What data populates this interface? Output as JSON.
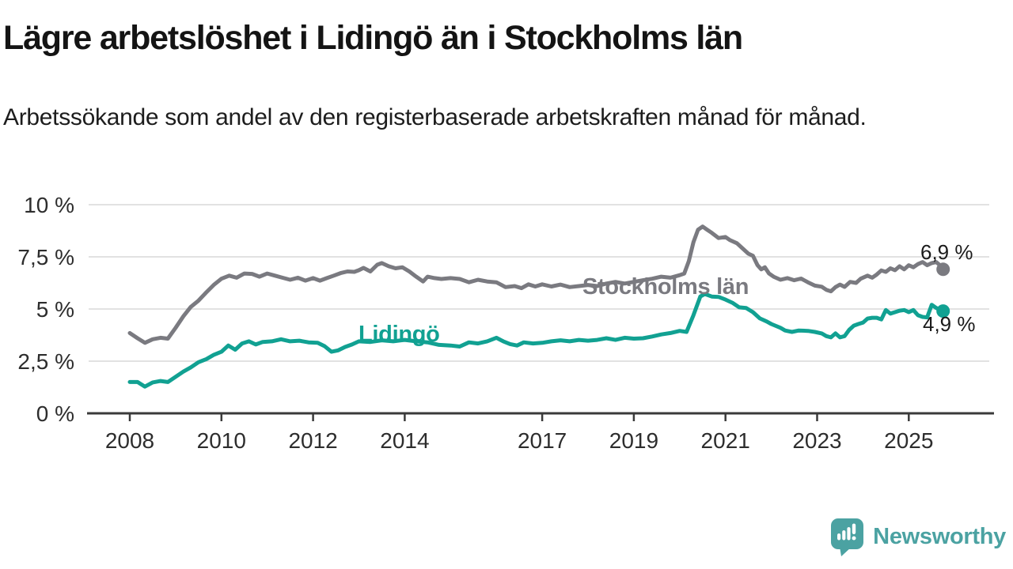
{
  "chart_data": {
    "type": "line",
    "title": "Lägre arbetslöshet i Lidingö än i Stockholms län",
    "subtitle": "Arbetssökande som andel av den registerbaserade arbetskraften månad för månad.",
    "x_axis": {
      "range": [
        2008,
        2025.75
      ],
      "ticks": [
        {
          "label": "2008",
          "value": 2008
        },
        {
          "label": "2010",
          "value": 2010
        },
        {
          "label": "2012",
          "value": 2012
        },
        {
          "label": "2014",
          "value": 2014
        },
        {
          "label": "2017",
          "value": 2017
        },
        {
          "label": "2019",
          "value": 2019
        },
        {
          "label": "2021",
          "value": 2021
        },
        {
          "label": "2023",
          "value": 2023
        },
        {
          "label": "2025",
          "value": 2025
        }
      ]
    },
    "y_axis": {
      "range": [
        0,
        10
      ],
      "grid": true,
      "ticks": [
        {
          "label": "0 %",
          "value": 0
        },
        {
          "label": "2,5 %",
          "value": 2.5
        },
        {
          "label": "5 %",
          "value": 5
        },
        {
          "label": "7,5 %",
          "value": 7.5
        },
        {
          "label": "10 %",
          "value": 10
        }
      ]
    },
    "legend_position": "inline-labels",
    "series": [
      {
        "name": "Stockholms län",
        "color": "#7A7A80",
        "end_label": "6,9 %",
        "end_value": 6.9,
        "points": [
          [
            2008.0,
            3.85
          ],
          [
            2008.17,
            3.6
          ],
          [
            2008.33,
            3.38
          ],
          [
            2008.5,
            3.55
          ],
          [
            2008.67,
            3.62
          ],
          [
            2008.83,
            3.58
          ],
          [
            2009.0,
            4.1
          ],
          [
            2009.17,
            4.65
          ],
          [
            2009.33,
            5.1
          ],
          [
            2009.5,
            5.4
          ],
          [
            2009.67,
            5.8
          ],
          [
            2009.83,
            6.15
          ],
          [
            2010.0,
            6.45
          ],
          [
            2010.17,
            6.6
          ],
          [
            2010.33,
            6.5
          ],
          [
            2010.5,
            6.7
          ],
          [
            2010.67,
            6.68
          ],
          [
            2010.83,
            6.55
          ],
          [
            2011.0,
            6.7
          ],
          [
            2011.17,
            6.6
          ],
          [
            2011.33,
            6.5
          ],
          [
            2011.5,
            6.4
          ],
          [
            2011.67,
            6.5
          ],
          [
            2011.83,
            6.36
          ],
          [
            2012.0,
            6.48
          ],
          [
            2012.15,
            6.36
          ],
          [
            2012.3,
            6.48
          ],
          [
            2012.45,
            6.6
          ],
          [
            2012.6,
            6.72
          ],
          [
            2012.75,
            6.8
          ],
          [
            2012.9,
            6.78
          ],
          [
            2013.0,
            6.86
          ],
          [
            2013.1,
            6.97
          ],
          [
            2013.25,
            6.8
          ],
          [
            2013.4,
            7.12
          ],
          [
            2013.5,
            7.2
          ],
          [
            2013.65,
            7.05
          ],
          [
            2013.8,
            6.95
          ],
          [
            2013.95,
            7.0
          ],
          [
            2014.1,
            6.8
          ],
          [
            2014.25,
            6.55
          ],
          [
            2014.4,
            6.32
          ],
          [
            2014.5,
            6.55
          ],
          [
            2014.65,
            6.48
          ],
          [
            2014.8,
            6.44
          ],
          [
            2015.0,
            6.48
          ],
          [
            2015.2,
            6.44
          ],
          [
            2015.4,
            6.28
          ],
          [
            2015.6,
            6.4
          ],
          [
            2015.8,
            6.32
          ],
          [
            2016.0,
            6.28
          ],
          [
            2016.2,
            6.05
          ],
          [
            2016.4,
            6.1
          ],
          [
            2016.55,
            6.0
          ],
          [
            2016.7,
            6.18
          ],
          [
            2016.85,
            6.08
          ],
          [
            2017.0,
            6.18
          ],
          [
            2017.2,
            6.08
          ],
          [
            2017.4,
            6.17
          ],
          [
            2017.6,
            6.05
          ],
          [
            2017.8,
            6.1
          ],
          [
            2018.0,
            6.15
          ],
          [
            2018.2,
            6.1
          ],
          [
            2018.4,
            6.22
          ],
          [
            2018.6,
            6.3
          ],
          [
            2018.8,
            6.22
          ],
          [
            2019.0,
            6.3
          ],
          [
            2019.2,
            6.38
          ],
          [
            2019.4,
            6.45
          ],
          [
            2019.6,
            6.55
          ],
          [
            2019.8,
            6.5
          ],
          [
            2020.0,
            6.62
          ],
          [
            2020.1,
            6.7
          ],
          [
            2020.2,
            7.3
          ],
          [
            2020.3,
            8.2
          ],
          [
            2020.4,
            8.8
          ],
          [
            2020.5,
            8.95
          ],
          [
            2020.6,
            8.8
          ],
          [
            2020.7,
            8.65
          ],
          [
            2020.85,
            8.4
          ],
          [
            2021.0,
            8.45
          ],
          [
            2021.1,
            8.3
          ],
          [
            2021.25,
            8.15
          ],
          [
            2021.35,
            7.95
          ],
          [
            2021.5,
            7.65
          ],
          [
            2021.6,
            7.55
          ],
          [
            2021.7,
            7.1
          ],
          [
            2021.78,
            6.9
          ],
          [
            2021.86,
            7.0
          ],
          [
            2021.95,
            6.7
          ],
          [
            2022.05,
            6.55
          ],
          [
            2022.2,
            6.4
          ],
          [
            2022.35,
            6.48
          ],
          [
            2022.5,
            6.38
          ],
          [
            2022.65,
            6.46
          ],
          [
            2022.8,
            6.28
          ],
          [
            2022.95,
            6.12
          ],
          [
            2023.1,
            6.07
          ],
          [
            2023.2,
            5.92
          ],
          [
            2023.3,
            5.85
          ],
          [
            2023.4,
            6.05
          ],
          [
            2023.5,
            6.17
          ],
          [
            2023.6,
            6.06
          ],
          [
            2023.72,
            6.3
          ],
          [
            2023.85,
            6.25
          ],
          [
            2023.95,
            6.45
          ],
          [
            2024.1,
            6.6
          ],
          [
            2024.2,
            6.5
          ],
          [
            2024.3,
            6.65
          ],
          [
            2024.4,
            6.85
          ],
          [
            2024.5,
            6.78
          ],
          [
            2024.6,
            6.95
          ],
          [
            2024.7,
            6.86
          ],
          [
            2024.8,
            7.05
          ],
          [
            2024.9,
            6.9
          ],
          [
            2025.0,
            7.1
          ],
          [
            2025.1,
            7.0
          ],
          [
            2025.2,
            7.15
          ],
          [
            2025.3,
            7.25
          ],
          [
            2025.4,
            7.1
          ],
          [
            2025.5,
            7.2
          ],
          [
            2025.6,
            7.25
          ],
          [
            2025.68,
            7.1
          ],
          [
            2025.75,
            6.9
          ]
        ]
      },
      {
        "name": "Lidingö",
        "color": "#11A192",
        "end_label": "4,9 %",
        "end_value": 4.9,
        "points": [
          [
            2008.0,
            1.5
          ],
          [
            2008.17,
            1.5
          ],
          [
            2008.33,
            1.28
          ],
          [
            2008.5,
            1.48
          ],
          [
            2008.67,
            1.55
          ],
          [
            2008.83,
            1.5
          ],
          [
            2009.0,
            1.75
          ],
          [
            2009.17,
            2.0
          ],
          [
            2009.33,
            2.2
          ],
          [
            2009.5,
            2.45
          ],
          [
            2009.67,
            2.6
          ],
          [
            2009.83,
            2.8
          ],
          [
            2010.0,
            2.95
          ],
          [
            2010.15,
            3.25
          ],
          [
            2010.3,
            3.05
          ],
          [
            2010.45,
            3.35
          ],
          [
            2010.6,
            3.45
          ],
          [
            2010.75,
            3.3
          ],
          [
            2010.9,
            3.42
          ],
          [
            2011.1,
            3.45
          ],
          [
            2011.3,
            3.55
          ],
          [
            2011.5,
            3.45
          ],
          [
            2011.7,
            3.48
          ],
          [
            2011.9,
            3.4
          ],
          [
            2012.1,
            3.38
          ],
          [
            2012.25,
            3.22
          ],
          [
            2012.4,
            2.95
          ],
          [
            2012.55,
            3.02
          ],
          [
            2012.7,
            3.18
          ],
          [
            2012.85,
            3.3
          ],
          [
            2013.0,
            3.45
          ],
          [
            2013.25,
            3.42
          ],
          [
            2013.5,
            3.5
          ],
          [
            2013.75,
            3.45
          ],
          [
            2014.0,
            3.52
          ],
          [
            2014.25,
            3.45
          ],
          [
            2014.5,
            3.4
          ],
          [
            2014.75,
            3.28
          ],
          [
            2015.0,
            3.25
          ],
          [
            2015.2,
            3.2
          ],
          [
            2015.4,
            3.4
          ],
          [
            2015.6,
            3.35
          ],
          [
            2015.8,
            3.45
          ],
          [
            2016.0,
            3.62
          ],
          [
            2016.15,
            3.45
          ],
          [
            2016.3,
            3.32
          ],
          [
            2016.45,
            3.25
          ],
          [
            2016.6,
            3.4
          ],
          [
            2016.8,
            3.35
          ],
          [
            2017.0,
            3.38
          ],
          [
            2017.2,
            3.45
          ],
          [
            2017.4,
            3.5
          ],
          [
            2017.6,
            3.45
          ],
          [
            2017.8,
            3.52
          ],
          [
            2018.0,
            3.48
          ],
          [
            2018.2,
            3.52
          ],
          [
            2018.4,
            3.6
          ],
          [
            2018.6,
            3.52
          ],
          [
            2018.8,
            3.62
          ],
          [
            2019.0,
            3.58
          ],
          [
            2019.2,
            3.6
          ],
          [
            2019.4,
            3.68
          ],
          [
            2019.6,
            3.78
          ],
          [
            2019.8,
            3.85
          ],
          [
            2020.0,
            3.95
          ],
          [
            2020.15,
            3.9
          ],
          [
            2020.3,
            4.7
          ],
          [
            2020.45,
            5.6
          ],
          [
            2020.55,
            5.72
          ],
          [
            2020.7,
            5.6
          ],
          [
            2020.85,
            5.58
          ],
          [
            2021.0,
            5.45
          ],
          [
            2021.15,
            5.3
          ],
          [
            2021.3,
            5.08
          ],
          [
            2021.45,
            5.05
          ],
          [
            2021.6,
            4.85
          ],
          [
            2021.75,
            4.55
          ],
          [
            2021.9,
            4.4
          ],
          [
            2022.0,
            4.28
          ],
          [
            2022.2,
            4.1
          ],
          [
            2022.3,
            3.97
          ],
          [
            2022.45,
            3.9
          ],
          [
            2022.6,
            3.97
          ],
          [
            2022.8,
            3.95
          ],
          [
            2022.95,
            3.9
          ],
          [
            2023.1,
            3.83
          ],
          [
            2023.2,
            3.7
          ],
          [
            2023.3,
            3.64
          ],
          [
            2023.4,
            3.83
          ],
          [
            2023.5,
            3.64
          ],
          [
            2023.6,
            3.7
          ],
          [
            2023.7,
            4.0
          ],
          [
            2023.8,
            4.2
          ],
          [
            2023.9,
            4.28
          ],
          [
            2024.0,
            4.35
          ],
          [
            2024.1,
            4.54
          ],
          [
            2024.2,
            4.58
          ],
          [
            2024.3,
            4.58
          ],
          [
            2024.4,
            4.5
          ],
          [
            2024.5,
            4.95
          ],
          [
            2024.6,
            4.78
          ],
          [
            2024.7,
            4.85
          ],
          [
            2024.8,
            4.92
          ],
          [
            2024.9,
            4.95
          ],
          [
            2025.0,
            4.85
          ],
          [
            2025.1,
            4.95
          ],
          [
            2025.2,
            4.7
          ],
          [
            2025.3,
            4.62
          ],
          [
            2025.4,
            4.6
          ],
          [
            2025.5,
            5.2
          ],
          [
            2025.6,
            5.05
          ],
          [
            2025.75,
            4.9
          ]
        ]
      }
    ]
  },
  "footer": {
    "brand": "Newsworthy",
    "brand_color": "#4BA2A2",
    "logo_icon": "newsworthy-speech-bubble-bar-chart-icon"
  }
}
